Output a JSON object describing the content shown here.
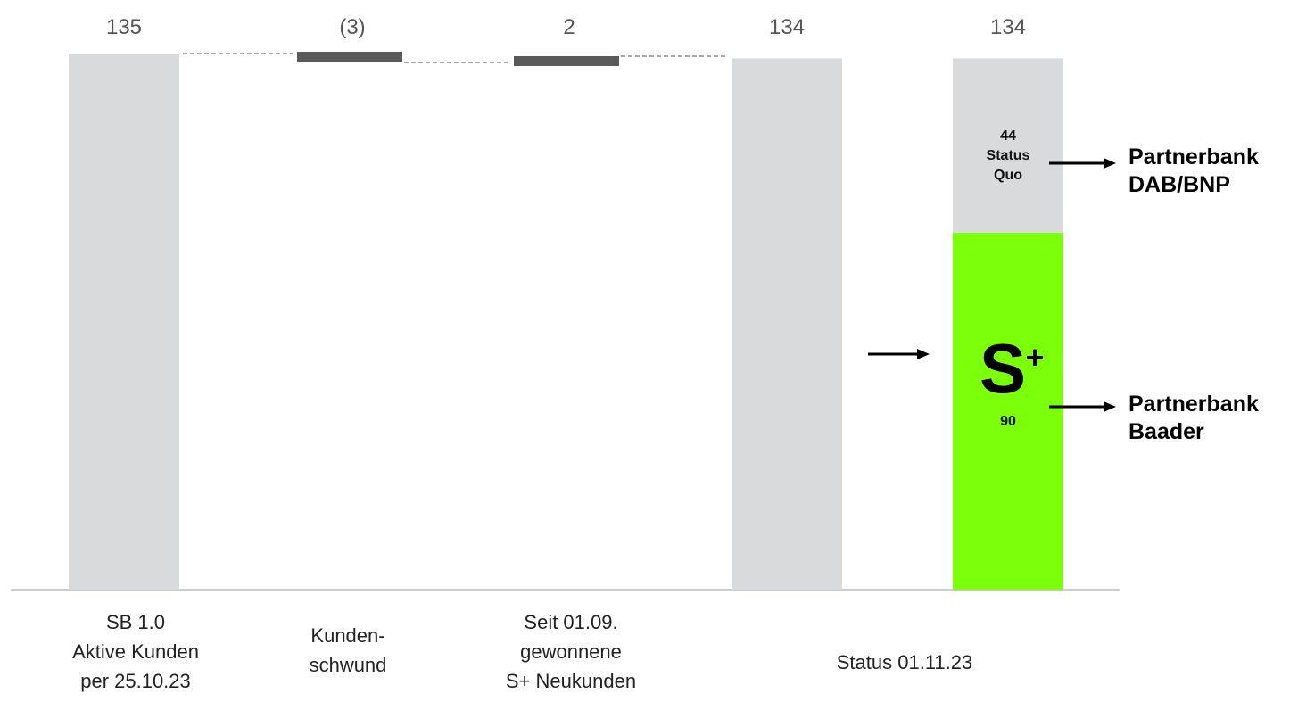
{
  "chart_data": {
    "type": "bar",
    "subtype": "waterfall",
    "categories": [
      [
        "SB 1.0",
        "Aktive Kunden",
        "per 25.10.23"
      ],
      [
        "Kunden-",
        "schwund"
      ],
      [
        "Seit 01.09.",
        "gewonnene",
        "S+ Neukunden"
      ],
      [
        "Status 01.11.23"
      ]
    ],
    "bars": [
      {
        "kind": "total",
        "base": 0,
        "value": 135,
        "label": "135"
      },
      {
        "kind": "delta",
        "base": 132,
        "value": -3,
        "label": "(3)"
      },
      {
        "kind": "delta",
        "base": 132,
        "value": 2,
        "label": "2"
      },
      {
        "kind": "total",
        "base": 0,
        "value": 134,
        "label": "134"
      },
      {
        "kind": "stacked",
        "base": 0,
        "value": 134,
        "label": "134",
        "segments": [
          {
            "value": 90,
            "label": "90",
            "logo": {
              "letter": "S",
              "sup": "+"
            },
            "side_label": [
              "Partnerbank",
              "Baader"
            ]
          },
          {
            "value": 44,
            "label": [
              "44",
              "Status",
              "Quo"
            ],
            "side_label": [
              "Partnerbank",
              "DAB/BNP"
            ]
          }
        ]
      }
    ],
    "colors": {
      "total": "#d9dadb",
      "delta": "#5a5a5a",
      "baader": "#7cff0a",
      "status_quo": "#d9dadb",
      "connector": "#888888",
      "axis": "#cccccc"
    },
    "ylim": [
      0,
      135
    ]
  }
}
